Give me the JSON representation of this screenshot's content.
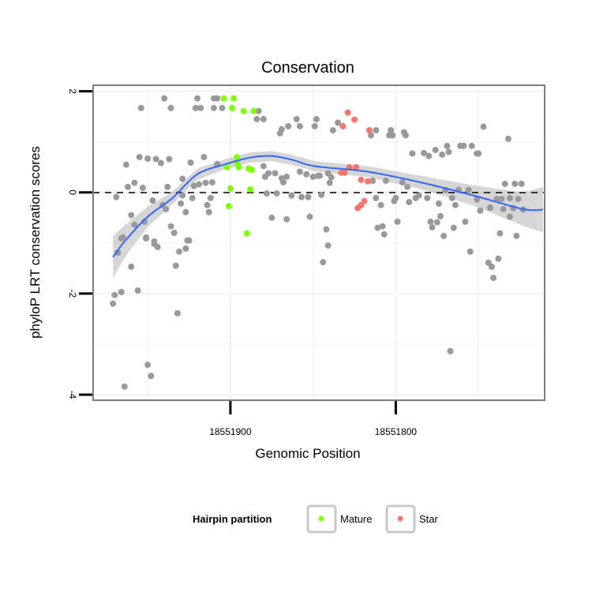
{
  "chart_data": {
    "type": "scatter",
    "title": "Conservation",
    "xlabel": "Genomic Position",
    "ylabel": "phyloP LRT conservation scores",
    "xlim": [
      18551983,
      18551710
    ],
    "x_reversed": true,
    "ylim": [
      -4.11,
      2.12
    ],
    "x_ticks": [
      18551900,
      18551800
    ],
    "x_tick_labels": [
      "18551900",
      "18551800"
    ],
    "y_ticks": [
      2,
      0,
      -2,
      -4
    ],
    "y_tick_labels": [
      "2",
      "0",
      "-2",
      "-4"
    ],
    "grid": true,
    "reference_line": {
      "y": 0,
      "style": "dashed"
    },
    "legend": {
      "title": "Hairpin partition",
      "placement": "bottom",
      "entries": [
        {
          "label": "Mature",
          "color": "#7fff00"
        },
        {
          "label": "Star",
          "color": "#f8766d"
        }
      ]
    },
    "series": [
      {
        "name": "Other",
        "color": "#999999",
        "points": [
          [
            18551940,
            1.86
          ],
          [
            18551954,
            1.67
          ],
          [
            18551936,
            1.67
          ],
          [
            18551920,
            1.86
          ],
          [
            18551921,
            1.67
          ],
          [
            18551918,
            1.67
          ],
          [
            18551910,
            1.86
          ],
          [
            18551908,
            1.86
          ],
          [
            18551910,
            1.67
          ],
          [
            18551905,
            1.67
          ],
          [
            18551883,
            1.61
          ],
          [
            18551884,
            1.45
          ],
          [
            18551880,
            1.45
          ],
          [
            18551870,
            1.17
          ],
          [
            18551869,
            1.25
          ],
          [
            18551865,
            1.31
          ],
          [
            18551860,
            1.45
          ],
          [
            18551858,
            1.31
          ],
          [
            18551848,
            1.45
          ],
          [
            18551849,
            1.31
          ],
          [
            18551963,
            0.55
          ],
          [
            18551955,
            0.7
          ],
          [
            18551950,
            0.67
          ],
          [
            18551945,
            0.66
          ],
          [
            18551942,
            0.58
          ],
          [
            18551937,
            0.66
          ],
          [
            18551924,
            0.59
          ],
          [
            18551916,
            0.7
          ],
          [
            18551908,
            0.56
          ],
          [
            18551880,
            0.52
          ],
          [
            18551877,
            0.38
          ],
          [
            18551873,
            0.38
          ],
          [
            18551879,
            0.31
          ],
          [
            18551869,
            0.28
          ],
          [
            18551866,
            0.31
          ],
          [
            18551868,
            0.2
          ],
          [
            18551858,
            0.41
          ],
          [
            18551854,
            0.36
          ],
          [
            18551850,
            0.31
          ],
          [
            18551847,
            0.33
          ],
          [
            18551962,
            0.11
          ],
          [
            18551958,
            0.19
          ],
          [
            18551953,
            0.09
          ],
          [
            18551969,
            -0.09
          ],
          [
            18551938,
            0.11
          ],
          [
            18551929,
            0.27
          ],
          [
            18551922,
            0.13
          ],
          [
            18551919,
            0.16
          ],
          [
            18551915,
            0.19
          ],
          [
            18551911,
            0.2
          ],
          [
            18551929,
            -0.06
          ],
          [
            18551923,
            -0.11
          ],
          [
            18551912,
            -0.11
          ],
          [
            18551878,
            -0.02
          ],
          [
            18551872,
            -0.02
          ],
          [
            18551863,
            -0.06
          ],
          [
            18551857,
            -0.09
          ],
          [
            18551853,
            -0.09
          ],
          [
            18551947,
            -0.16
          ],
          [
            18551941,
            -0.25
          ],
          [
            18551939,
            -0.33
          ],
          [
            18551930,
            -0.22
          ],
          [
            18551914,
            -0.25
          ],
          [
            18551927,
            -0.39
          ],
          [
            18551913,
            -0.39
          ],
          [
            18551960,
            -0.45
          ],
          [
            18551958,
            -0.64
          ],
          [
            18551952,
            -0.58
          ],
          [
            18551936,
            -0.67
          ],
          [
            18551934,
            -0.8
          ],
          [
            18551875,
            -0.5
          ],
          [
            18551866,
            -0.53
          ],
          [
            18551852,
            -0.48
          ],
          [
            18551965,
            -0.89
          ],
          [
            18551951,
            -0.89
          ],
          [
            18551946,
            -0.97
          ],
          [
            18551925,
            -0.95
          ],
          [
            18551835,
            1.38
          ],
          [
            18551838,
            1.23
          ],
          [
            18551812,
            1.23
          ],
          [
            18551815,
            1.13
          ],
          [
            18551803,
            1.23
          ],
          [
            18551804,
            1.13
          ],
          [
            18551802,
            1.13
          ],
          [
            18551795,
            1.19
          ],
          [
            18551794,
            1.13
          ],
          [
            18551747,
            1.3
          ],
          [
            18551732,
            1.06
          ],
          [
            18551790,
            0.77
          ],
          [
            18551783,
            0.78
          ],
          [
            18551780,
            0.72
          ],
          [
            18551776,
            0.84
          ],
          [
            18551772,
            0.75
          ],
          [
            18551768,
            0.8
          ],
          [
            18551769,
            0.92
          ],
          [
            18551761,
            0.92
          ],
          [
            18551759,
            0.92
          ],
          [
            18551754,
            0.92
          ],
          [
            18551751,
            0.77
          ],
          [
            18551750,
            0.77
          ],
          [
            18551846,
            0.33
          ],
          [
            18551841,
            0.38
          ],
          [
            18551839,
            0.3
          ],
          [
            18551840,
            0.19
          ],
          [
            18551845,
            -0.05
          ],
          [
            18551814,
            0.23
          ],
          [
            18551806,
            0.23
          ],
          [
            18551796,
            0.2
          ],
          [
            18551793,
            0.11
          ],
          [
            18551812,
            -0.11
          ],
          [
            18551809,
            -0.25
          ],
          [
            18551801,
            -0.17
          ],
          [
            18551800,
            -0.11
          ],
          [
            18551792,
            -0.19
          ],
          [
            18551788,
            -0.11
          ],
          [
            18551786,
            -0.06
          ],
          [
            18551781,
            -0.11
          ],
          [
            18551774,
            -0.22
          ],
          [
            18551766,
            -0.11
          ],
          [
            18551764,
            -0.25
          ],
          [
            18551770,
            0.05
          ],
          [
            18551762,
            0.05
          ],
          [
            18551756,
            0.05
          ],
          [
            18551751,
            -0.14
          ],
          [
            18551749,
            -0.36
          ],
          [
            18551743,
            -0.3
          ],
          [
            18551739,
            -0.13
          ],
          [
            18551736,
            -0.13
          ],
          [
            18551735,
            -0.33
          ],
          [
            18551731,
            -0.11
          ],
          [
            18551729,
            -0.31
          ],
          [
            18551726,
            -0.13
          ],
          [
            18551723,
            -0.34
          ],
          [
            18551731,
            -0.48
          ],
          [
            18551734,
            0.17
          ],
          [
            18551728,
            0.17
          ],
          [
            18551724,
            0.17
          ],
          [
            18551842,
            -0.73
          ],
          [
            18551811,
            -0.7
          ],
          [
            18551808,
            -0.67
          ],
          [
            18551807,
            -0.83
          ],
          [
            18551799,
            -0.58
          ],
          [
            18551779,
            -0.58
          ],
          [
            18551775,
            -0.59
          ],
          [
            18551773,
            -0.47
          ],
          [
            18551778,
            -0.69
          ],
          [
            18551765,
            -0.7
          ],
          [
            18551758,
            -0.58
          ],
          [
            18551771,
            -0.86
          ],
          [
            18551737,
            -0.81
          ],
          [
            18551727,
            -0.86
          ],
          [
            18551966,
            -0.91
          ],
          [
            18551951,
            -0.91
          ],
          [
            18551946,
            -1.02
          ],
          [
            18551944,
            -1.08
          ],
          [
            18551926,
            -0.95
          ],
          [
            18551927,
            -1.11
          ],
          [
            18551931,
            -1.17
          ],
          [
            18551933,
            -1.45
          ],
          [
            18551960,
            -1.47
          ],
          [
            18551968,
            -1.19
          ],
          [
            18551966,
            -1.97
          ],
          [
            18551970,
            -2.03
          ],
          [
            18551971,
            -2.2
          ],
          [
            18551956,
            -1.94
          ],
          [
            18551932,
            -2.39
          ],
          [
            18551950,
            -3.41
          ],
          [
            18551948,
            -3.63
          ],
          [
            18551964,
            -3.84
          ],
          [
            18551841,
            -1.05
          ],
          [
            18551844,
            -1.38
          ],
          [
            18551755,
            -1.17
          ],
          [
            18551744,
            -1.39
          ],
          [
            18551738,
            -1.31
          ],
          [
            18551742,
            -1.47
          ],
          [
            18551741,
            -1.69
          ],
          [
            18551767,
            -3.14
          ]
        ]
      },
      {
        "name": "Mature",
        "color": "#7fff00",
        "points": [
          [
            18551904,
            1.86
          ],
          [
            18551898,
            1.86
          ],
          [
            18551899,
            1.67
          ],
          [
            18551892,
            1.61
          ],
          [
            18551886,
            1.61
          ],
          [
            18551896,
            0.7
          ],
          [
            18551896,
            0.58
          ],
          [
            18551895,
            0.5
          ],
          [
            18551902,
            0.5
          ],
          [
            18551889,
            0.47
          ],
          [
            18551887,
            0.45
          ],
          [
            18551900,
            0.08
          ],
          [
            18551888,
            0.06
          ],
          [
            18551901,
            -0.27
          ],
          [
            18551890,
            -0.81
          ]
        ]
      },
      {
        "name": "Star",
        "color": "#f8766d",
        "points": [
          [
            18551829,
            1.58
          ],
          [
            18551825,
            1.44
          ],
          [
            18551832,
            1.31
          ],
          [
            18551816,
            1.23
          ],
          [
            18551828,
            0.5
          ],
          [
            18551824,
            0.5
          ],
          [
            18551833,
            0.39
          ],
          [
            18551831,
            0.39
          ],
          [
            18551821,
            0.25
          ],
          [
            18551817,
            0.22
          ],
          [
            18551819,
            -0.17
          ],
          [
            18551821,
            -0.25
          ],
          [
            18551823,
            -0.31
          ]
        ]
      }
    ],
    "smooth": {
      "method": "loess",
      "color": "#3366ff",
      "x": [
        18551971,
        18551964,
        18551950,
        18551935,
        18551920,
        18551903,
        18551888,
        18551875,
        18551862,
        18551849,
        18551817,
        18551785,
        18551753,
        18551723,
        18551711
      ],
      "y": [
        -1.28,
        -0.97,
        -0.48,
        -0.11,
        0.36,
        0.56,
        0.69,
        0.72,
        0.64,
        0.52,
        0.41,
        0.2,
        -0.06,
        -0.33,
        -0.34
      ],
      "se": [
        0.42,
        0.32,
        0.2,
        0.13,
        0.11,
        0.1,
        0.1,
        0.1,
        0.1,
        0.1,
        0.11,
        0.13,
        0.2,
        0.33,
        0.45
      ]
    }
  }
}
